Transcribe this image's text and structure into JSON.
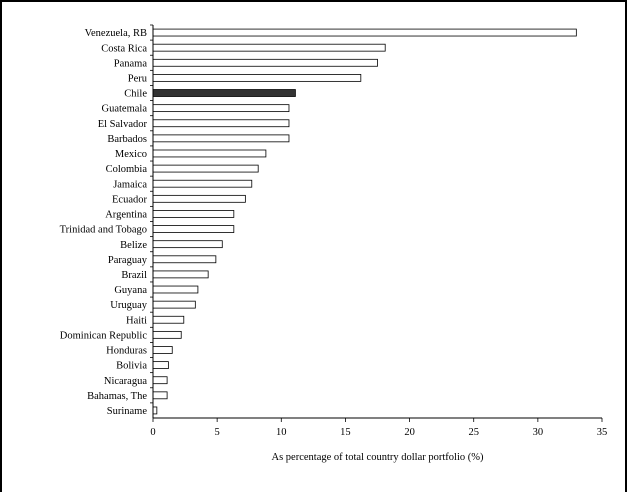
{
  "chart_data": {
    "type": "bar",
    "orientation": "horizontal",
    "title": "",
    "xlabel": "As percentage of total country dollar portfolio (%)",
    "ylabel": "",
    "xlim": [
      0,
      35
    ],
    "x_ticks": [
      0,
      5,
      10,
      15,
      20,
      25,
      30,
      35
    ],
    "grid": false,
    "bar_fill": "#ffffff",
    "highlight_fill": "#333333",
    "highlight_category": "Chile",
    "categories": [
      "Venezuela, RB",
      "Costa Rica",
      "Panama",
      "Peru",
      "Chile",
      "Guatemala",
      "El Salvador",
      "Barbados",
      "Mexico",
      "Colombia",
      "Jamaica",
      "Ecuador",
      "Argentina",
      "Trinidad and Tobago",
      "Belize",
      "Paraguay",
      "Brazil",
      "Guyana",
      "Uruguay",
      "Haiti",
      "Dominican Republic",
      "Honduras",
      "Bolivia",
      "Nicaragua",
      "Bahamas, The",
      "Suriname"
    ],
    "values": [
      33.0,
      18.1,
      17.5,
      16.2,
      11.1,
      10.6,
      10.6,
      10.6,
      8.8,
      8.2,
      7.7,
      7.2,
      6.3,
      6.3,
      5.4,
      4.9,
      4.3,
      3.5,
      3.3,
      2.4,
      2.2,
      1.5,
      1.2,
      1.1,
      1.1,
      0.3
    ]
  }
}
